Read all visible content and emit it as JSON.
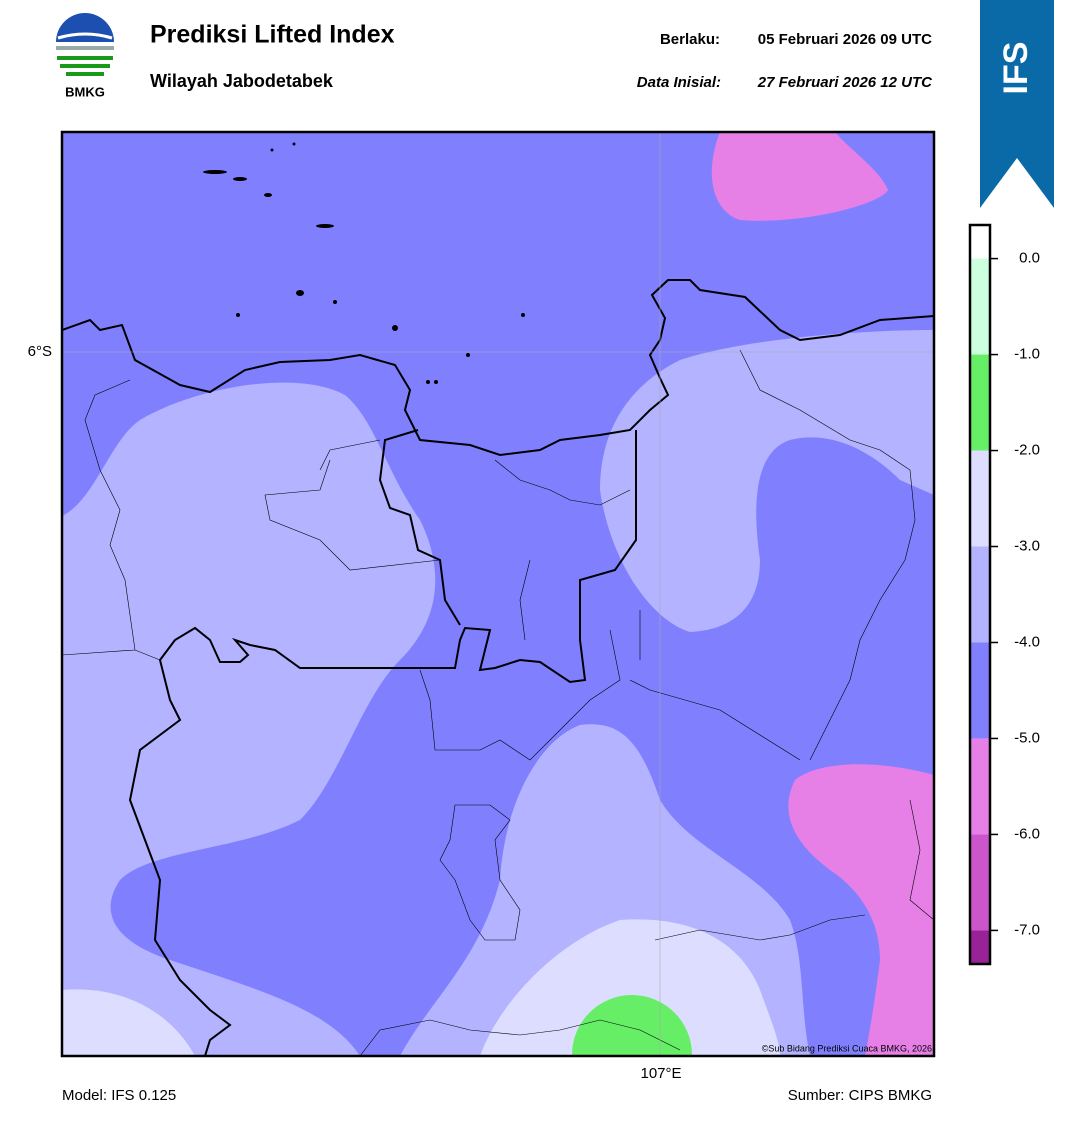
{
  "header": {
    "logo_text": "BMKG",
    "title": "Prediksi Lifted Index",
    "subtitle": "Wilayah Jabodetabek",
    "valid_label": "Berlaku:",
    "valid_value": "05 Februari 2026 09 UTC",
    "init_label": "Data Inisial:",
    "init_value": "27 Februari 2026 12 UTC",
    "badge": "IFS"
  },
  "map": {
    "lat_label": "6°S",
    "lon_label": "107°E",
    "copyright": "©Sub Bidang Prediksi Cuaca BMKG, 2026"
  },
  "colorbar": {
    "bounds": [
      0.35,
      0,
      -1,
      -2,
      -3,
      -4,
      -5,
      -6,
      -7,
      -7.35
    ],
    "colors": [
      "#ffffff",
      "#ccffdd",
      "#66ee66",
      "#ddddff",
      "#b3b3ff",
      "#8080ff",
      "#e680e6",
      "#cc55cc",
      "#992299"
    ],
    "ticks": [
      {
        "value": 0,
        "label": "0.0"
      },
      {
        "value": -1,
        "label": "-1.0"
      },
      {
        "value": -2,
        "label": "-2.0"
      },
      {
        "value": -3,
        "label": "-3.0"
      },
      {
        "value": -4,
        "label": "-4.0"
      },
      {
        "value": -5,
        "label": "-5.0"
      },
      {
        "value": -6,
        "label": "-6.0"
      },
      {
        "value": -7,
        "label": "-7.0"
      }
    ]
  },
  "footer": {
    "model": "Model: IFS 0.125",
    "source": "Sumber: CIPS BMKG"
  }
}
